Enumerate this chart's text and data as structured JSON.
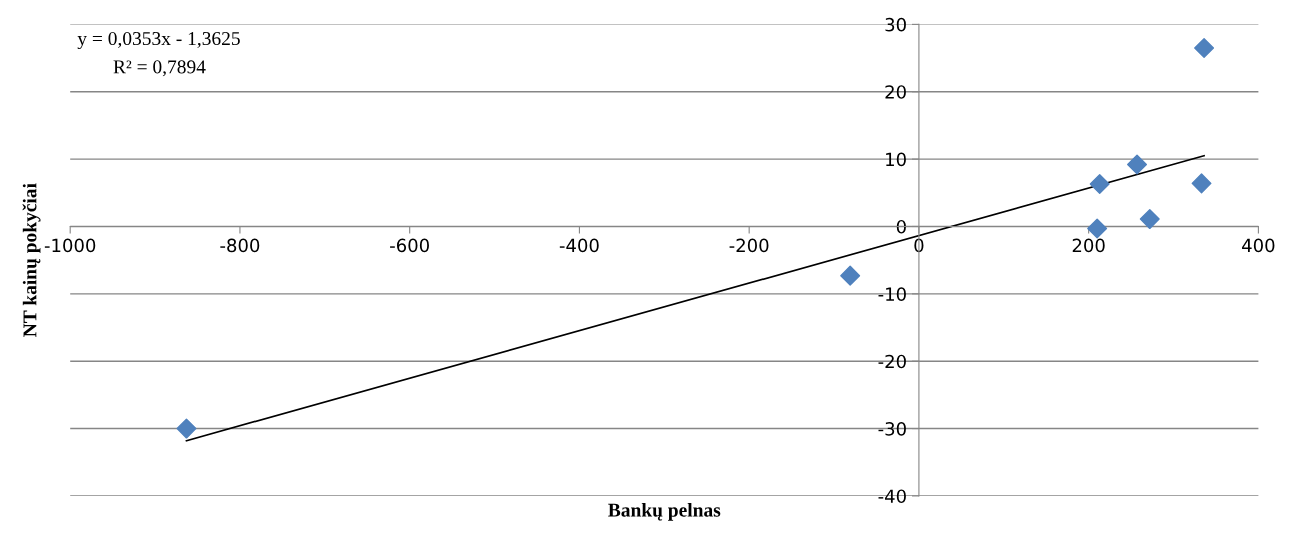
{
  "chart_data": {
    "type": "scatter",
    "xlabel": "Bankų pelnas",
    "ylabel": "NT kainų pokyčiai",
    "annotations": [
      "y = 0,0353x - 1,3625",
      "R² = 0,7894"
    ],
    "series": [
      {
        "color": "#4f81bd",
        "marker": "diamond",
        "x": [
          -863,
          -81,
          210,
          213,
          257,
          272,
          333,
          336
        ],
        "values": [
          -30,
          -7.3,
          -0.3,
          6.3,
          9.2,
          1.1,
          6.4,
          26.5
        ]
      },
      {
        "type": "line",
        "color": "#000000",
        "marker": "none",
        "x": [
          -863,
          336
        ],
        "values": [
          -31.8,
          10.5
        ]
      }
    ],
    "xlim": [
      -1000,
      400
    ],
    "xticks": [
      -1000,
      -800,
      -600,
      -400,
      -200,
      0,
      200,
      400
    ],
    "ylim": [
      -40,
      30
    ],
    "yticks": [
      -40,
      -30,
      -20,
      -10,
      0,
      10,
      20,
      30
    ],
    "grid": "y",
    "legend": false
  }
}
